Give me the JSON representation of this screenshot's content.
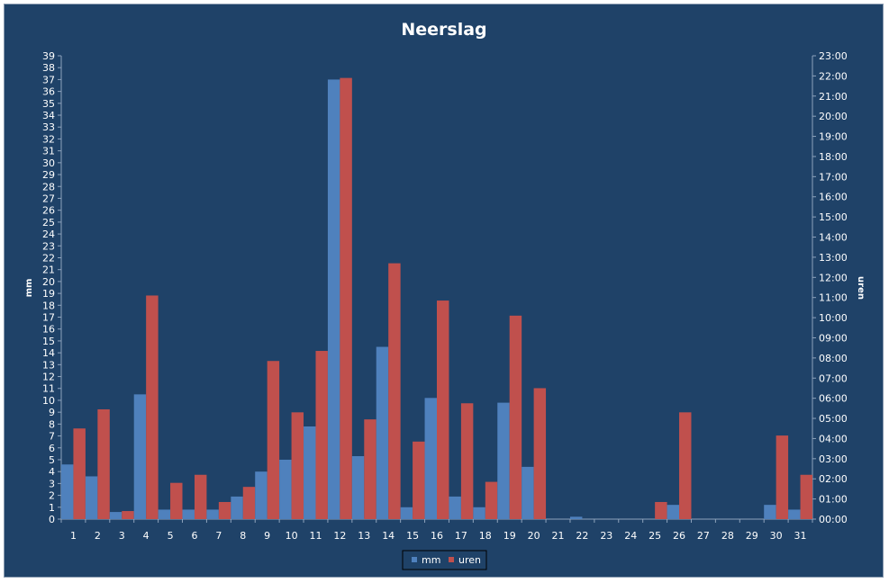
{
  "colors": {
    "background": "#1f4268",
    "mm": "#4f81bd",
    "uren": "#c0504d",
    "axis": "#8ea3bc",
    "text": "#ffffff"
  },
  "chart_data": {
    "type": "bar",
    "title": "Neerslag",
    "ylabel": "mm",
    "y2label": "uren",
    "ylim": [
      0,
      39
    ],
    "y2lim": [
      0,
      23
    ],
    "grid": false,
    "legend": "bottom",
    "categories": [
      "1",
      "2",
      "3",
      "4",
      "5",
      "6",
      "7",
      "8",
      "9",
      "10",
      "11",
      "12",
      "13",
      "14",
      "15",
      "16",
      "17",
      "18",
      "19",
      "20",
      "21",
      "22",
      "23",
      "24",
      "25",
      "26",
      "27",
      "28",
      "29",
      "30",
      "31"
    ],
    "y_ticks": [
      "0",
      "1",
      "2",
      "3",
      "4",
      "5",
      "6",
      "7",
      "8",
      "9",
      "10",
      "11",
      "12",
      "13",
      "14",
      "15",
      "16",
      "17",
      "18",
      "19",
      "20",
      "21",
      "22",
      "23",
      "24",
      "25",
      "26",
      "27",
      "28",
      "29",
      "30",
      "31",
      "32",
      "33",
      "34",
      "35",
      "36",
      "37",
      "38",
      "39"
    ],
    "y2_ticks": [
      "00:00",
      "01:00",
      "02:00",
      "03:00",
      "04:00",
      "05:00",
      "06:00",
      "07:00",
      "08:00",
      "09:00",
      "10:00",
      "11:00",
      "12:00",
      "13:00",
      "14:00",
      "15:00",
      "16:00",
      "17:00",
      "18:00",
      "19:00",
      "20:00",
      "21:00",
      "22:00",
      "23:00"
    ],
    "series": [
      {
        "name": "mm",
        "axis": "left",
        "values": [
          4.6,
          3.6,
          0.6,
          10.5,
          0.8,
          0.8,
          0.8,
          1.9,
          4.0,
          5.0,
          7.8,
          37.0,
          5.3,
          14.5,
          1.0,
          10.2,
          1.9,
          1.0,
          9.8,
          4.4,
          0.0,
          0.2,
          0.0,
          0.0,
          0.0,
          1.2,
          0.0,
          0.0,
          0.0,
          1.2,
          0.8
        ]
      },
      {
        "name": "uren",
        "axis": "right",
        "values": [
          4.5,
          5.45,
          0.4,
          11.1,
          1.8,
          2.2,
          0.85,
          1.6,
          7.85,
          5.3,
          8.35,
          21.9,
          4.95,
          12.7,
          3.85,
          10.85,
          5.75,
          1.85,
          10.1,
          6.5,
          0.0,
          0.0,
          0.0,
          0.0,
          0.85,
          5.3,
          0.0,
          0.0,
          0.0,
          4.15,
          2.2
        ]
      }
    ]
  }
}
